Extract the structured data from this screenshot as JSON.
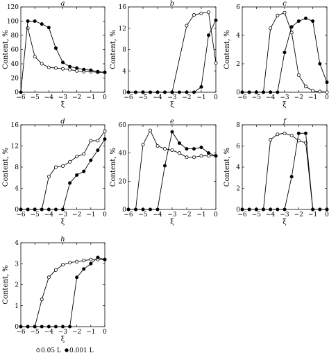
{
  "chart_data": [
    {
      "type": "line",
      "panel": "a",
      "xlabel": "ξ",
      "ylabel": "Content, %",
      "xlim": [
        -6,
        0
      ],
      "ylim": [
        0,
        120
      ],
      "xticks": [
        -6,
        -5,
        -4,
        -3,
        -2,
        -1,
        0
      ],
      "yticks": [
        0,
        20,
        40,
        60,
        80,
        100,
        120
      ],
      "series": [
        {
          "marker": "open",
          "points": [
            [
              -5.5,
              90
            ],
            [
              -5,
              50
            ],
            [
              -4.5,
              40
            ],
            [
              -4,
              35
            ],
            [
              -3.5,
              34
            ],
            [
              -3,
              33
            ],
            [
              -2.5,
              32
            ],
            [
              -2,
              30
            ],
            [
              -1.5,
              29
            ],
            [
              -1,
              29
            ],
            [
              -0.5,
              28
            ],
            [
              0,
              28
            ]
          ]
        },
        {
          "marker": "filled",
          "points": [
            [
              -6,
              0
            ],
            [
              -5.5,
              100
            ],
            [
              -5,
              100
            ],
            [
              -4.5,
              96
            ],
            [
              -4,
              91
            ],
            [
              -3.5,
              62
            ],
            [
              -3,
              42
            ],
            [
              -2.5,
              36
            ],
            [
              -2,
              34
            ],
            [
              -1.5,
              32
            ],
            [
              -1,
              31
            ],
            [
              -0.5,
              29
            ],
            [
              0,
              28
            ]
          ]
        }
      ]
    },
    {
      "type": "line",
      "panel": "b",
      "xlabel": "ξ",
      "ylabel": "Content, %",
      "xlim": [
        -6,
        0
      ],
      "ylim": [
        0,
        16
      ],
      "xticks": [
        -6,
        -5,
        -4,
        -3,
        -2,
        -1,
        0
      ],
      "yticks": [
        0,
        4,
        8,
        12,
        16
      ],
      "series": [
        {
          "marker": "open",
          "points": [
            [
              -6,
              0
            ],
            [
              -5.5,
              0
            ],
            [
              -5,
              0
            ],
            [
              -4.5,
              0
            ],
            [
              -4,
              0
            ],
            [
              -3.5,
              0
            ],
            [
              -3,
              0
            ],
            [
              -2,
              12.5
            ],
            [
              -1.5,
              14.5
            ],
            [
              -1,
              14.8
            ],
            [
              -0.5,
              15
            ],
            [
              0,
              5.5
            ]
          ]
        },
        {
          "marker": "filled",
          "points": [
            [
              -6,
              0
            ],
            [
              -5.5,
              0
            ],
            [
              -5,
              0
            ],
            [
              -4.5,
              0
            ],
            [
              -4,
              0
            ],
            [
              -3.5,
              0
            ],
            [
              -3,
              0
            ],
            [
              -2.5,
              0
            ],
            [
              -2,
              0
            ],
            [
              -1.5,
              0
            ],
            [
              -1,
              1
            ],
            [
              -0.5,
              10.7
            ],
            [
              0,
              13.5
            ]
          ]
        }
      ]
    },
    {
      "type": "line",
      "panel": "c",
      "xlabel": "ξ",
      "ylabel": "Content, %",
      "xlim": [
        -6,
        0
      ],
      "ylim": [
        0,
        6
      ],
      "xticks": [
        -6,
        -5,
        -4,
        -3,
        -2,
        -1,
        0
      ],
      "yticks": [
        0,
        2,
        4,
        6
      ],
      "series": [
        {
          "marker": "open",
          "points": [
            [
              -6,
              0
            ],
            [
              -5.5,
              0
            ],
            [
              -5,
              0
            ],
            [
              -4.5,
              0
            ],
            [
              -4,
              4.5
            ],
            [
              -3.5,
              5.4
            ],
            [
              -3,
              5.6
            ],
            [
              -2.5,
              4.2
            ],
            [
              -2,
              1.2
            ],
            [
              -1.5,
              0.4
            ],
            [
              -1,
              0.1
            ],
            [
              -0.5,
              0.05
            ],
            [
              0,
              0
            ]
          ]
        },
        {
          "marker": "filled",
          "points": [
            [
              -6,
              0
            ],
            [
              -5.5,
              0
            ],
            [
              -5,
              0
            ],
            [
              -4.5,
              0
            ],
            [
              -4,
              0
            ],
            [
              -3.5,
              0
            ],
            [
              -3,
              2.8
            ],
            [
              -2.5,
              4.6
            ],
            [
              -2,
              5.0
            ],
            [
              -1.5,
              5.2
            ],
            [
              -1,
              5.0
            ],
            [
              -0.5,
              2.0
            ],
            [
              0,
              0.7
            ]
          ]
        }
      ]
    },
    {
      "type": "line",
      "panel": "d",
      "xlabel": "ξ",
      "ylabel": "Content, %",
      "xlim": [
        -6,
        0
      ],
      "ylim": [
        0,
        16
      ],
      "xticks": [
        -6,
        -5,
        -4,
        -3,
        -2,
        -1,
        0
      ],
      "yticks": [
        0,
        4,
        8,
        12,
        16
      ],
      "series": [
        {
          "marker": "open",
          "points": [
            [
              -6,
              0
            ],
            [
              -5.5,
              0
            ],
            [
              -5,
              0
            ],
            [
              -4.5,
              0
            ],
            [
              -4,
              6.2
            ],
            [
              -3.5,
              8
            ],
            [
              -3,
              8.2
            ],
            [
              -2.5,
              9
            ],
            [
              -2,
              10
            ],
            [
              -1.5,
              10.5
            ],
            [
              -1,
              13
            ],
            [
              -0.5,
              13
            ],
            [
              0,
              14.8
            ]
          ]
        },
        {
          "marker": "filled",
          "points": [
            [
              -6,
              0
            ],
            [
              -5.5,
              0
            ],
            [
              -5,
              0
            ],
            [
              -4.5,
              0
            ],
            [
              -4,
              0
            ],
            [
              -3.5,
              0
            ],
            [
              -3,
              0
            ],
            [
              -2.5,
              5
            ],
            [
              -2,
              6.5
            ],
            [
              -1.5,
              7.2
            ],
            [
              -1,
              9.3
            ],
            [
              -0.5,
              11.2
            ],
            [
              0,
              13.3
            ]
          ]
        }
      ]
    },
    {
      "type": "line",
      "panel": "e",
      "xlabel": "ξ",
      "ylabel": "Content, %",
      "xlim": [
        -6,
        0
      ],
      "ylim": [
        0,
        60
      ],
      "xticks": [
        -6,
        -5,
        -4,
        -3,
        -2,
        -1,
        0
      ],
      "yticks": [
        0,
        20,
        40,
        60
      ],
      "series": [
        {
          "marker": "open",
          "points": [
            [
              -6,
              0
            ],
            [
              -5.5,
              0
            ],
            [
              -5,
              46
            ],
            [
              -4.5,
              56
            ],
            [
              -4,
              45
            ],
            [
              -3.5,
              43
            ],
            [
              -3,
              42
            ],
            [
              -2.5,
              40
            ],
            [
              -2,
              37
            ],
            [
              -1.5,
              37
            ],
            [
              -1,
              38
            ],
            [
              -0.5,
              38
            ],
            [
              0,
              38
            ]
          ]
        },
        {
          "marker": "filled",
          "points": [
            [
              -6,
              0
            ],
            [
              -5.5,
              0
            ],
            [
              -5,
              0
            ],
            [
              -4.5,
              0
            ],
            [
              -4,
              0
            ],
            [
              -3.5,
              31
            ],
            [
              -3,
              55
            ],
            [
              -2.5,
              47
            ],
            [
              -2,
              43
            ],
            [
              -1.5,
              43
            ],
            [
              -1,
              44
            ],
            [
              -0.5,
              40
            ],
            [
              0,
              38
            ]
          ]
        }
      ]
    },
    {
      "type": "line",
      "panel": "f",
      "xlabel": "ξ",
      "ylabel": "Content, %",
      "xlim": [
        -6,
        0
      ],
      "ylim": [
        0,
        8
      ],
      "xticks": [
        -6,
        -5,
        -4,
        -3,
        -2,
        -1,
        0
      ],
      "yticks": [
        0,
        2,
        4,
        6,
        8
      ],
      "series": [
        {
          "marker": "open",
          "points": [
            [
              -6,
              0
            ],
            [
              -5.5,
              0
            ],
            [
              -5,
              0
            ],
            [
              -4.5,
              0
            ],
            [
              -4,
              6.6
            ],
            [
              -3.5,
              7.1
            ],
            [
              -3,
              7.2
            ],
            [
              -2.5,
              7.0
            ],
            [
              -2,
              6.5
            ],
            [
              -1.5,
              6.3
            ],
            [
              -1,
              0
            ],
            [
              -0.5,
              0
            ],
            [
              0,
              0
            ]
          ]
        },
        {
          "marker": "filled",
          "points": [
            [
              -6,
              0
            ],
            [
              -5.5,
              0
            ],
            [
              -5,
              0
            ],
            [
              -4.5,
              0
            ],
            [
              -4,
              0
            ],
            [
              -3.5,
              0
            ],
            [
              -3,
              0
            ],
            [
              -2.5,
              3.1
            ],
            [
              -2,
              7.2
            ],
            [
              -1.5,
              7.2
            ],
            [
              -1,
              0
            ],
            [
              -0.5,
              0
            ],
            [
              0,
              0
            ]
          ]
        }
      ]
    },
    {
      "type": "line",
      "panel": "h",
      "xlabel": "ξ",
      "ylabel": "Content, %",
      "xlim": [
        -6,
        0
      ],
      "ylim": [
        0,
        4
      ],
      "xticks": [
        -6,
        -5,
        -4,
        -3,
        -2,
        -1,
        0
      ],
      "yticks": [
        0,
        1,
        2,
        3,
        4
      ],
      "series": [
        {
          "marker": "open",
          "points": [
            [
              -6,
              0
            ],
            [
              -5.5,
              0
            ],
            [
              -5,
              0
            ],
            [
              -4.5,
              1.3
            ],
            [
              -4,
              2.35
            ],
            [
              -3.5,
              2.7
            ],
            [
              -3,
              2.95
            ],
            [
              -2.5,
              3.05
            ],
            [
              -2,
              3.1
            ],
            [
              -1.5,
              3.15
            ],
            [
              -1,
              3.2
            ],
            [
              -0.5,
              3.2
            ],
            [
              0,
              3.2
            ]
          ]
        },
        {
          "marker": "filled",
          "points": [
            [
              -6,
              0
            ],
            [
              -5.5,
              0
            ],
            [
              -5,
              0
            ],
            [
              -4.5,
              0
            ],
            [
              -4,
              0
            ],
            [
              -3.5,
              0
            ],
            [
              -3,
              0
            ],
            [
              -2.5,
              0
            ],
            [
              -2,
              2.35
            ],
            [
              -1.5,
              2.75
            ],
            [
              -1,
              3.0
            ],
            [
              -0.5,
              3.3
            ],
            [
              0,
              3.2
            ]
          ]
        }
      ]
    }
  ],
  "legend": {
    "open_label": "0.05 L",
    "filled_label": "0.001 L"
  }
}
